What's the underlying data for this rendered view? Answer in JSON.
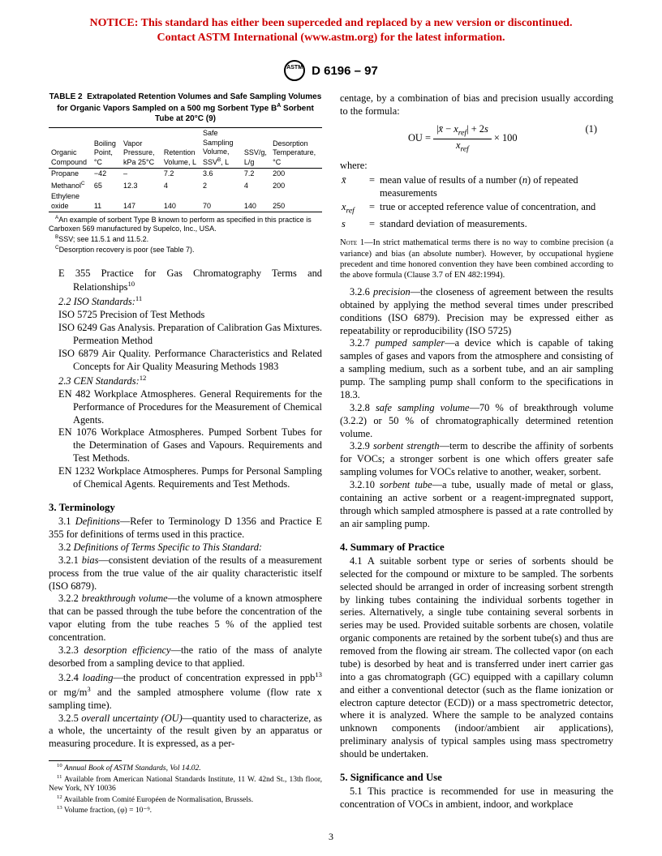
{
  "notice": {
    "line1": "NOTICE: This standard has either been superceded and replaced by a new version or discontinued.",
    "line2": "Contact ASTM International (www.astm.org) for the latest information.",
    "color": "#cc0000"
  },
  "header": {
    "designation": "D 6196 – 97",
    "logo_text": "ASTM"
  },
  "table": {
    "number": "TABLE 2",
    "title_rest": "Extrapolated Retention Volumes and Safe Sampling Volumes for Organic Vapors Sampled on a 500 mg Sorbent Type B",
    "title_tail": " Sorbent Tube at 20°C (9)",
    "title_sup": "A",
    "headers": [
      "Organic Compound",
      "Boiling Point, °C",
      "Vapor Pressure, kPa 25°C",
      "Retention Volume, L",
      "Safe Sampling Volume, SSV",
      "SSV/g, L/g",
      "Desorption Temperature, °C"
    ],
    "header_ssv_sup": "B",
    "header_ssv_tail": ", L",
    "rows": [
      {
        "c0": "Propane",
        "c1": "−42",
        "c2": "–",
        "c3": "7.2",
        "c4": "3.6",
        "c5": "7.2",
        "c6": "200"
      },
      {
        "c0": "Methanol",
        "c0sup": "C",
        "c1": "65",
        "c2": "12.3",
        "c3": "4",
        "c4": "2",
        "c5": "4",
        "c6": "200"
      },
      {
        "c0": "Ethylene oxide",
        "c1": "11",
        "c2": "147",
        "c3": "140",
        "c4": "70",
        "c5": "140",
        "c6": "250"
      }
    ],
    "notes": {
      "a": "An example of sorbent Type B known to perform as specified in this practice is Carboxen 569 manufactured by Supelco, Inc., USA.",
      "b": "SSV; see 11.5.1 and 11.5.2.",
      "c": "Desorption recovery is poor (see Table 7)."
    }
  },
  "left": {
    "ref_e355": "E 355 Practice for Gas Chromatography Terms and Relationships",
    "ref_e355_sup": "10",
    "iso_head": "2.2  ISO Standards:",
    "iso_head_sup": "11",
    "iso5725": "ISO 5725  Precision of Test Methods",
    "iso6249": "ISO 6249 Gas Analysis. Preparation of Calibration Gas Mixtures. Permeation Method",
    "iso6879": "ISO 6879  Air Quality. Performance Characteristics and Related Concepts for Air Quality Measuring Methods 1983",
    "cen_head": "2.3  CEN Standards:",
    "cen_head_sup": "12",
    "en482": "EN 482  Workplace Atmospheres. General Requirements for the Performance of Procedures for the Measurement of Chemical Agents.",
    "en1076": "EN 1076  Workplace Atmospheres. Pumped Sorbent Tubes for the Determination of Gases and Vapours. Requirements and Test Methods.",
    "en1232": "EN 1232 Workplace Atmospheres. Pumps for Personal Sampling of Chemical Agents. Requirements and Test Methods.",
    "sec3": "3.  Terminology",
    "p31": "3.1 Definitions—Refer to Terminology D 1356 and Practice E 355 for definitions of terms used in this practice.",
    "p32": "3.2 Definitions of Terms Specific to This Standard:",
    "p321": "3.2.1 bias—consistent deviation of the results of a measurement process from the true value of the air quality characteristic itself (ISO 6879).",
    "p322": "3.2.2 breakthrough volume—the volume of a known atmosphere that can be passed through the tube before the concentration of the vapor eluting from the tube reaches 5 % of the applied test concentration.",
    "p323": "3.2.3 desorption efficiency—the ratio of the mass of analyte desorbed from a sampling device to that applied.",
    "p324a": "3.2.4 loading—the product of concentration expressed in ppb",
    "p324sup": "13",
    "p324b": " or mg/m",
    "p324c": " and the sampled atmosphere volume (flow rate x sampling time).",
    "p325": "3.2.5 overall uncertainty (OU)—quantity used to characterize, as a whole, the uncertainty of the result given by an apparatus or measuring procedure. It is expressed, as a per-"
  },
  "right": {
    "top": "centage, by a combination of bias and precision usually according to the formula:",
    "eqnum": "(1)",
    "where": "where:",
    "where_x": "mean value of results of a number (n) of repeated measurements",
    "where_xref": "true or accepted reference value of concentration, and",
    "where_s": "standard deviation of measurements.",
    "note1_label": "NOTE 1—",
    "note1": "In strict mathematical terms there is no way to combine precision (a variance) and bias (an absolute number). However, by occupational hygiene precedent and time honored convention they have been combined according to the above formula (Clause 3.7 of EN 482:1994).",
    "p326": "3.2.6 precision—the closeness of agreement between the results obtained by applying the method several times under prescribed conditions (ISO 6879). Precision may be expressed either as repeatability or reproducibility (ISO 5725)",
    "p327": "3.2.7 pumped sampler—a device which is capable of taking samples of gases and vapors from the atmosphere and consisting of a sampling medium, such as a sorbent tube, and an air sampling pump. The sampling pump shall conform to the specifications in 18.3.",
    "p328": "3.2.8 safe sampling volume—70 % of breakthrough volume (3.2.2) or 50 % of chromatographically determined retention volume.",
    "p329": "3.2.9 sorbent strength—term to describe the affinity of sorbents for VOCs; a stronger sorbent is one which offers greater safe sampling volumes for VOCs relative to another, weaker, sorbent.",
    "p3210": "3.2.10 sorbent tube—a tube, usually made of metal or glass, containing an active sorbent or a reagent-impregnated support, through which sampled atmosphere is passed at a rate controlled by an air sampling pump.",
    "sec4": "4.  Summary of Practice",
    "p41": "4.1 A suitable sorbent type or series of sorbents should be selected for the compound or mixture to be sampled. The sorbents selected should be arranged in order of increasing sorbent strength by linking tubes containing the individual sorbents together in series. Alternatively, a single tube containing several sorbents in series may be used. Provided suitable sorbents are chosen, volatile organic components are retained by the sorbent tube(s) and thus are removed from the flowing air stream. The collected vapor (on each tube) is desorbed by heat and is transferred under inert carrier gas into a gas chromatograph (GC) equipped with a capillary column and either a conventional detector (such as the flame ionization or electron capture detector (ECD)) or a mass spectrometric detector, where it is analyzed. Where the sample to be analyzed contains unknown components (indoor/ambient air applications), preliminary analysis of typical samples using mass spectrometry should be undertaken.",
    "sec5": "5.  Significance and Use",
    "p51": "5.1 This practice is recommended for use in measuring the concentration of VOCs in ambient, indoor, and workplace"
  },
  "footnotes": {
    "f10": "Annual Book of ASTM Standards, Vol 14.02.",
    "f11": "Available from American National Standards Institute, 11 W. 42nd St., 13th floor, New York, NY 10036",
    "f12": "Available from Comité Européen de Normalisation, Brussels.",
    "f13": "Volume fraction, (φ) = 10⁻⁹."
  },
  "pagenum": "3"
}
